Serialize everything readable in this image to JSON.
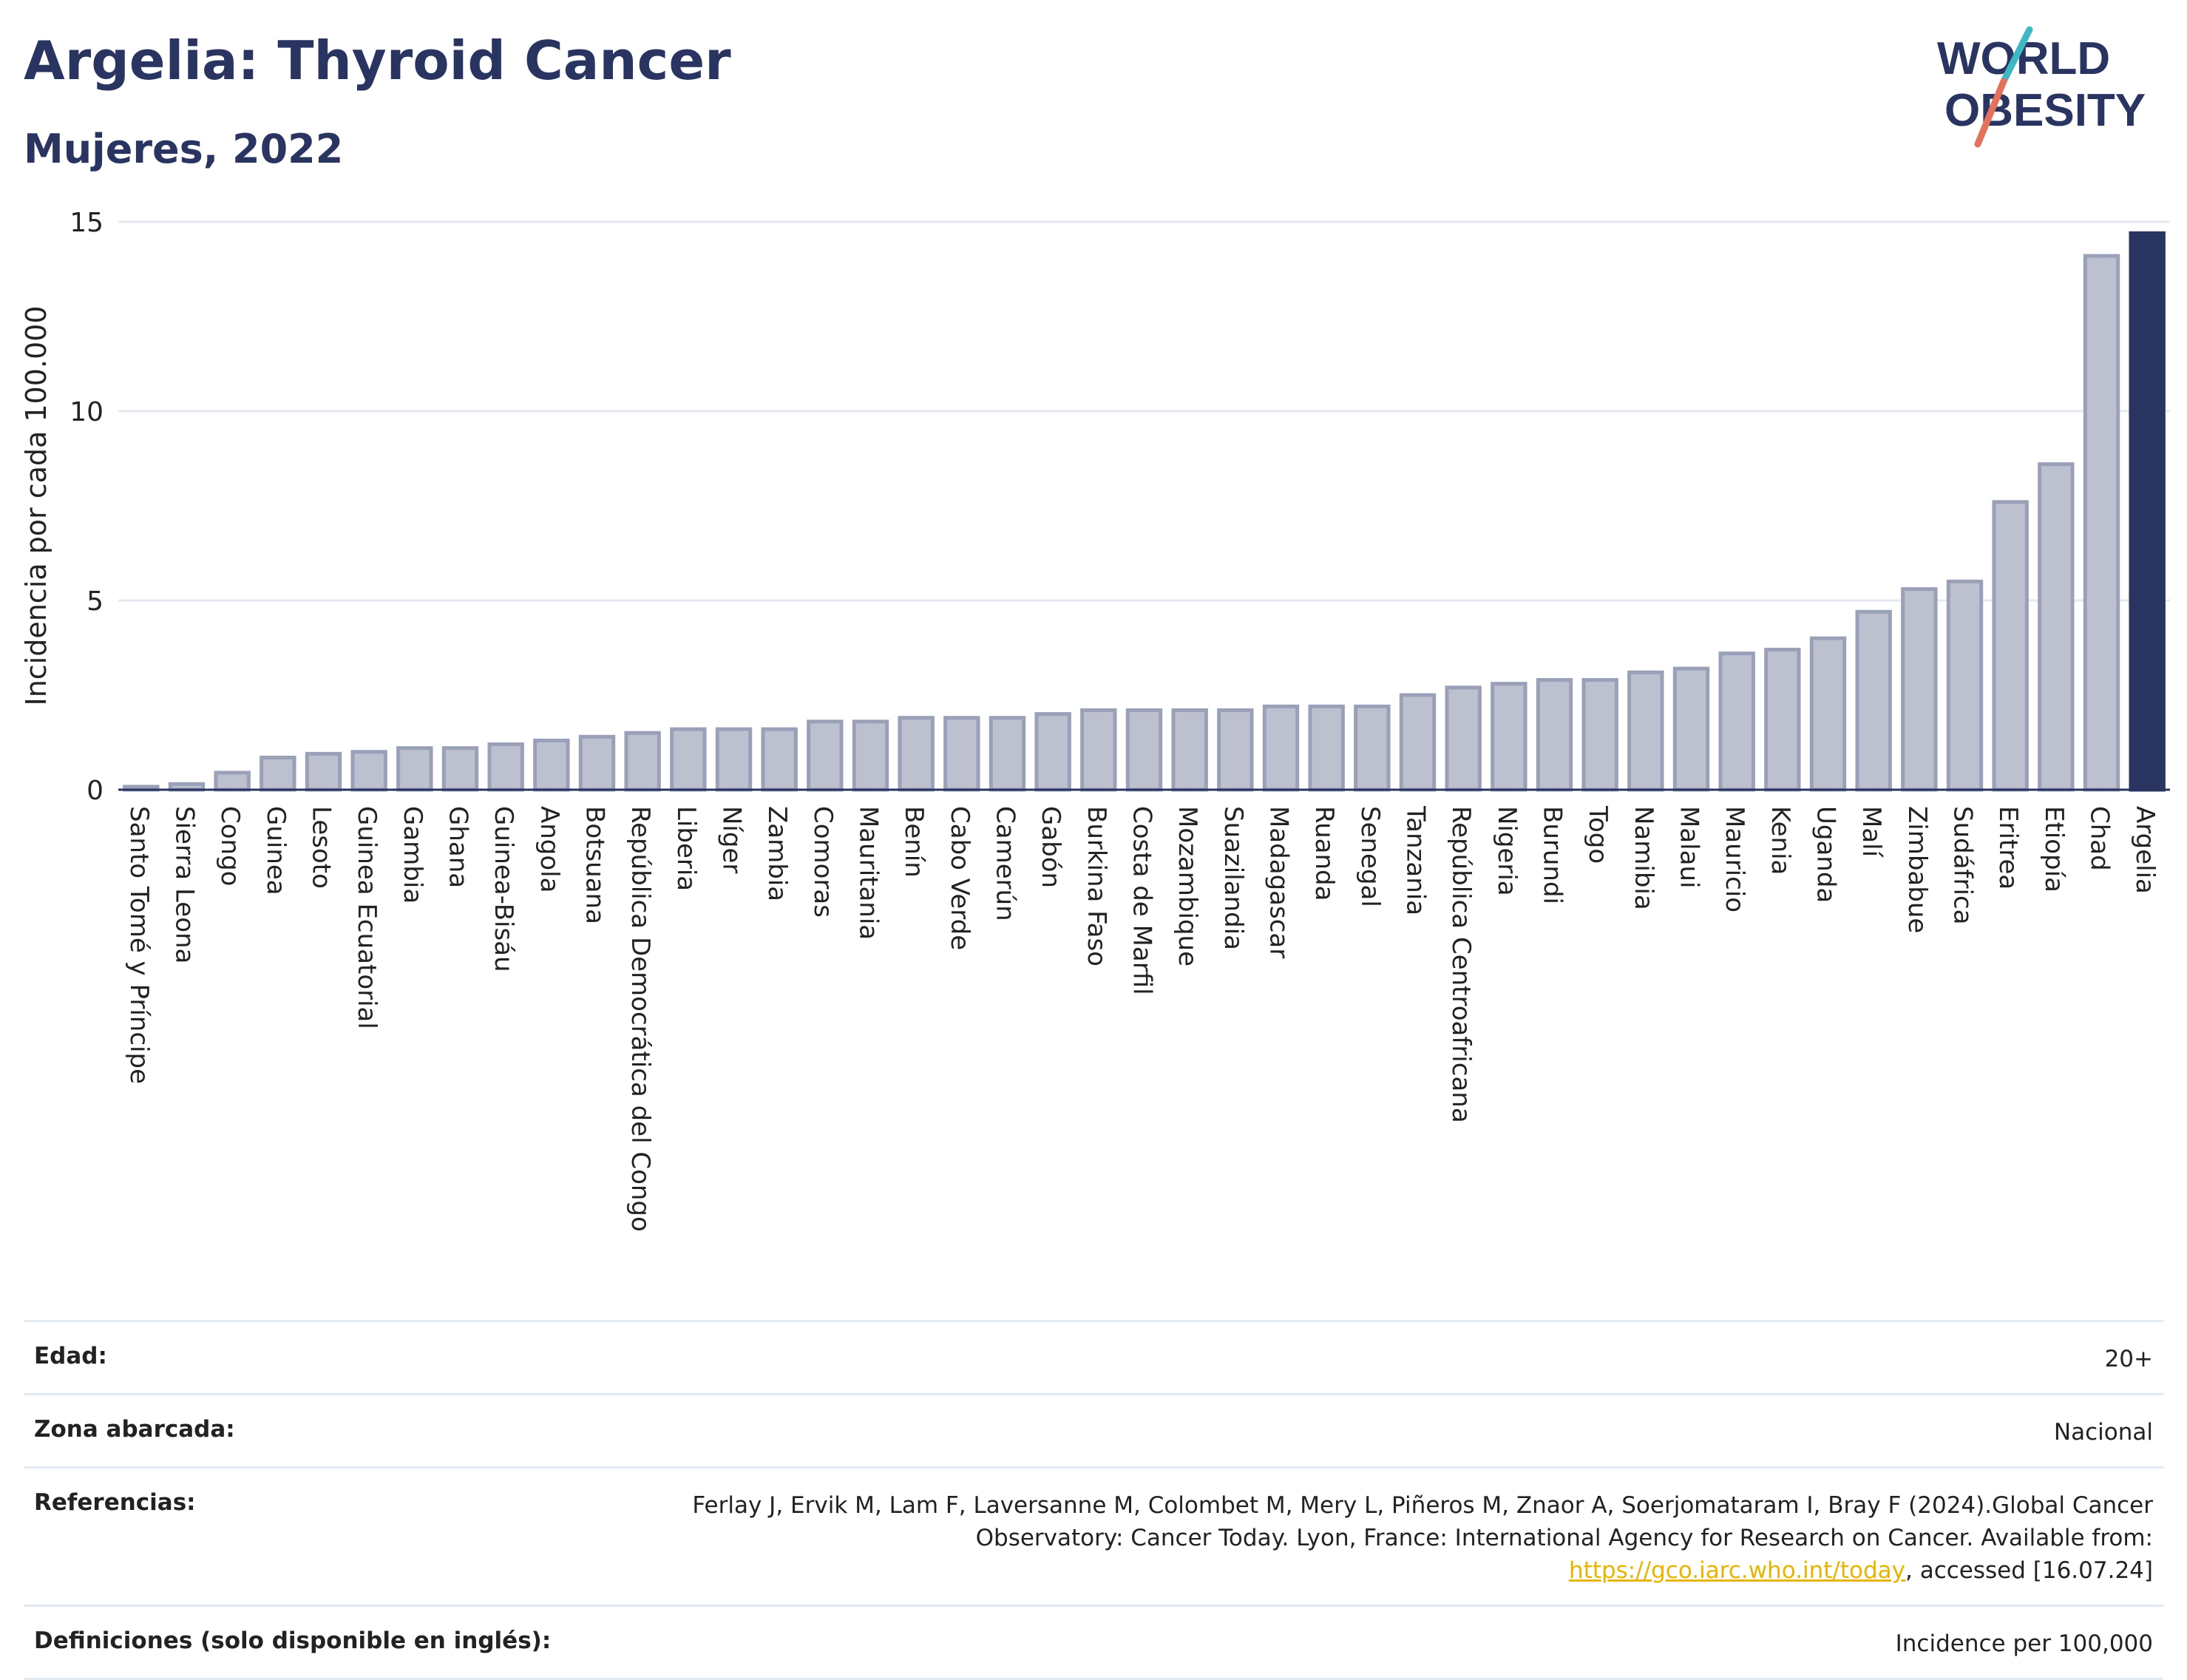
{
  "header": {
    "title": "Argelia: Thyroid Cancer",
    "subtitle": "Mujeres, 2022"
  },
  "logo": {
    "line1": "WORLD",
    "line2": "OBESITY",
    "accent_colors": [
      "#3fb8c4",
      "#e4715c"
    ]
  },
  "colors": {
    "bar_default": "#bcc0cf",
    "bar_border": "#9aa0b8",
    "bar_highlight": "#2a3460",
    "grid": "#e4eaf1",
    "text": "#2a3460"
  },
  "chart_data": {
    "type": "bar",
    "categories": [
      "Santo Tomé y Príncipe",
      "Sierra Leona",
      "Congo",
      "Guinea",
      "Lesoto",
      "Guinea Ecuatorial",
      "Gambia",
      "Ghana",
      "Guinea-Bisáu",
      "Angola",
      "Botsuana",
      "República Democrática del Congo",
      "Liberia",
      "Níger",
      "Zambia",
      "Comoras",
      "Mauritania",
      "Benín",
      "Cabo Verde",
      "Camerún",
      "Gabón",
      "Burkina Faso",
      "Costa de Marfil",
      "Mozambique",
      "Suazilandia",
      "Madagascar",
      "Ruanda",
      "Senegal",
      "Tanzania",
      "República Centroafricana",
      "Nigeria",
      "Burundi",
      "Togo",
      "Namibia",
      "Malaui",
      "Mauricio",
      "Kenia",
      "Uganda",
      "Malí",
      "Zimbabue",
      "Sudáfrica",
      "Eritrea",
      "Etiopía",
      "Chad",
      "Argelia"
    ],
    "values": [
      0.08,
      0.15,
      0.45,
      0.85,
      0.95,
      1.0,
      1.1,
      1.1,
      1.2,
      1.3,
      1.4,
      1.5,
      1.6,
      1.6,
      1.6,
      1.8,
      1.8,
      1.9,
      1.9,
      1.9,
      2.0,
      2.1,
      2.1,
      2.1,
      2.1,
      2.2,
      2.2,
      2.2,
      2.5,
      2.7,
      2.8,
      2.9,
      2.9,
      3.1,
      3.2,
      3.6,
      3.7,
      4.0,
      4.7,
      5.3,
      5.5,
      7.6,
      8.6,
      14.1,
      14.7
    ],
    "highlight": "Argelia",
    "ylabel": "Incidencia por cada 100.000",
    "xlabel": "",
    "ylim": [
      0,
      15
    ],
    "yticks": [
      0,
      5,
      10,
      15
    ],
    "grid": true
  },
  "meta": {
    "age_label": "Edad:",
    "age_value": "20+",
    "area_label": "Zona abarcada:",
    "area_value": "Nacional",
    "ref_label": "Referencias:",
    "ref_text": "Ferlay J, Ervik M, Lam F, Laversanne M, Colombet M, Mery L, Piñeros M, Znaor A, Soerjomataram I, Bray F (2024).Global Cancer Observatory: Cancer Today. Lyon, France: International Agency for Research on Cancer. Available from:",
    "ref_link": "https://gco.iarc.who.int/today",
    "ref_tail": ", accessed [16.07.24]",
    "def_label": "Definiciones (solo disponible en inglés):",
    "def_value": "Incidence per 100,000"
  }
}
